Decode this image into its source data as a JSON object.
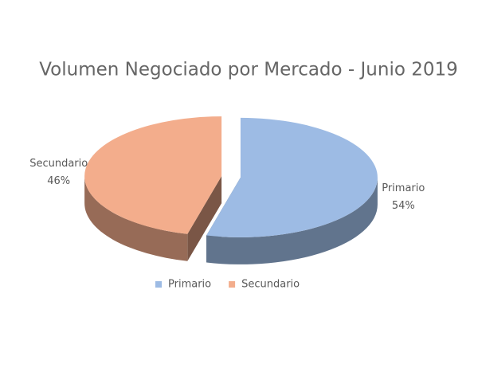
{
  "chart_data": {
    "type": "pie",
    "title": "Volumen Negociado por Mercado - Junio 2019",
    "categories": [
      "Primario",
      "Secundario"
    ],
    "values": [
      54,
      46
    ],
    "value_labels": [
      "54%",
      "46%"
    ],
    "series": [
      {
        "name": "Primario",
        "color": "#9dbbe4"
      },
      {
        "name": "Secundario",
        "color": "#f3ad8c"
      }
    ],
    "legend": "bottom"
  }
}
